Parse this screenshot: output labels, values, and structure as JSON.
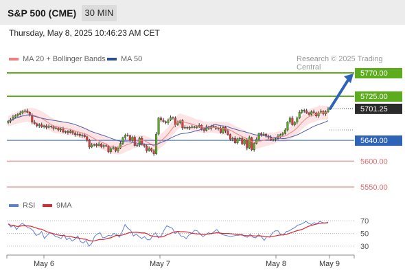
{
  "header": {
    "title": "S&P 500 (CME)",
    "timeframe": "30 MIN"
  },
  "timestamp": "Thursday, May 8, 2025 10:46:23 AM CET",
  "legend": {
    "ma20_label": "MA 20 + Bollinger Bands",
    "ma50_label": "MA 50",
    "rsi_label": "RSI",
    "rsi_ma_label": "9MA",
    "credit": "Research © 2025 Trading Central"
  },
  "colors": {
    "resistance": "#5cac1e",
    "support": "#e26b72",
    "pivot": "#2e63b8",
    "current": "#222222",
    "ma20": "#f08080",
    "ma50": "#4c5fa8",
    "band_fill": "#fde3e3",
    "candle_up": "#5cac1e",
    "candle_down": "#e03c3c",
    "rsi": "#5b7fd6",
    "rsi_ma": "#d9262f"
  },
  "chart_data": [
    {
      "type": "candlestick",
      "x_labels": [
        "May 6",
        "May 7",
        "May 8",
        "May 9"
      ],
      "levels": [
        {
          "value": 5770.0,
          "label": "5770.00",
          "kind": "resistance"
        },
        {
          "value": 5725.0,
          "label": "5725.00",
          "kind": "resistance"
        },
        {
          "value": 5701.25,
          "label": "5701.25",
          "kind": "current"
        },
        {
          "value": 5640.0,
          "label": "5640.00",
          "kind": "pivot"
        },
        {
          "value": 5600.0,
          "label": "5600.00",
          "kind": "support"
        },
        {
          "value": 5550.0,
          "label": "5550.00",
          "kind": "support"
        }
      ],
      "projection_target": 5770.0,
      "close_series": [
        5677,
        5680,
        5685,
        5688,
        5690,
        5693,
        5696,
        5697,
        5694,
        5689,
        5675,
        5672,
        5668,
        5670,
        5666,
        5668,
        5665,
        5667,
        5666,
        5663,
        5664,
        5660,
        5662,
        5656,
        5657,
        5655,
        5658,
        5654,
        5651,
        5652,
        5649,
        5650,
        5647,
        5640,
        5627,
        5631,
        5632,
        5630,
        5633,
        5628,
        5630,
        5629,
        5618,
        5624,
        5626,
        5620,
        5625,
        5634,
        5645,
        5650,
        5649,
        5640,
        5646,
        5630,
        5631,
        5644,
        5632,
        5629,
        5620,
        5624,
        5620,
        5614,
        5652,
        5683,
        5679,
        5676,
        5674,
        5679,
        5684,
        5683,
        5670,
        5674,
        5678,
        5664,
        5665,
        5664,
        5665,
        5666,
        5666,
        5666,
        5669,
        5662,
        5659,
        5666,
        5663,
        5667,
        5666,
        5663,
        5663,
        5655,
        5665,
        5658,
        5651,
        5642,
        5644,
        5635,
        5643,
        5644,
        5633,
        5641,
        5625,
        5645,
        5622,
        5634,
        5642,
        5653,
        5651,
        5652,
        5648,
        5646,
        5641,
        5642,
        5643,
        5648,
        5651,
        5653,
        5660,
        5675,
        5683,
        5670,
        5675,
        5683,
        5694,
        5698,
        5697,
        5693,
        5690,
        5695,
        5693,
        5687,
        5693,
        5696,
        5691,
        5695,
        5700
      ],
      "ma20_start": 5688,
      "ma20_end": 5690,
      "ma50_start": 5693,
      "ma50_end": 5662
    },
    {
      "type": "line",
      "title": "RSI",
      "yticks": [
        70,
        50,
        30
      ],
      "ylim": [
        20,
        80
      ],
      "rsi_series": [
        65,
        60,
        63,
        56,
        62,
        66,
        63,
        59,
        58,
        54,
        47,
        48,
        53,
        42,
        47,
        51,
        49,
        45,
        44,
        42,
        48,
        40,
        43,
        38,
        41,
        46,
        37,
        35,
        39,
        30,
        34,
        45,
        49,
        51,
        43,
        44,
        47,
        46,
        50,
        48,
        44,
        53,
        64,
        58,
        55,
        46,
        49,
        45,
        42,
        45,
        40,
        40,
        47,
        51,
        43,
        46,
        55,
        62,
        60,
        58,
        50,
        53,
        46,
        45,
        42,
        48,
        50,
        55,
        54,
        49,
        45,
        48,
        51,
        49,
        53,
        56,
        51,
        48,
        47,
        46,
        45,
        46,
        47,
        47,
        49,
        45,
        44,
        49,
        44,
        43,
        48,
        45,
        39,
        45,
        44,
        51,
        54,
        54,
        48,
        48,
        53,
        54,
        57,
        59,
        63,
        64,
        66,
        69,
        66,
        64,
        67,
        65,
        69,
        67,
        66,
        68
      ],
      "rsi_ma_start": 44,
      "rsi_ma_end": 66
    }
  ]
}
